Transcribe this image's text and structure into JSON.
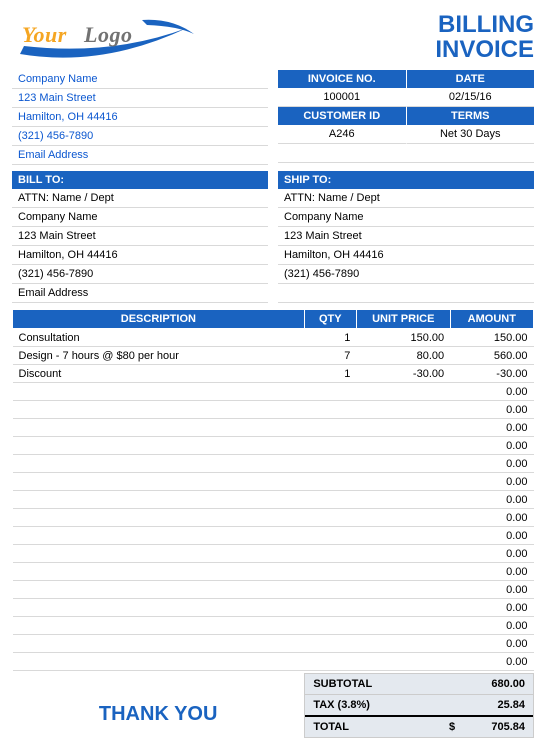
{
  "logo": {
    "text1": "Your",
    "text2": "Logo",
    "color1": "#f5a623",
    "color2": "#727272",
    "swoosh_color": "#1a63c0"
  },
  "title": {
    "line1": "BILLING",
    "line2": "INVOICE",
    "color": "#1a63c0"
  },
  "company": {
    "name": "Company Name",
    "street": "123 Main Street",
    "citystate": "Hamilton, OH  44416",
    "phone": "(321) 456-7890",
    "email": "Email Address"
  },
  "meta": {
    "invoice_label": "INVOICE NO.",
    "date_label": "DATE",
    "invoice_no": "100001",
    "date": "02/15/16",
    "customer_label": "CUSTOMER ID",
    "terms_label": "TERMS",
    "customer_id": "A246",
    "terms": "Net 30 Days"
  },
  "billto": {
    "header": "BILL TO:",
    "attn": "ATTN: Name / Dept",
    "company": "Company Name",
    "street": "123 Main Street",
    "citystate": "Hamilton, OH  44416",
    "phone": "(321) 456-7890",
    "email": "Email Address"
  },
  "shipto": {
    "header": "SHIP TO:",
    "attn": "ATTN: Name / Dept",
    "company": "Company Name",
    "street": "123 Main Street",
    "citystate": "Hamilton, OH  44416",
    "phone": "(321) 456-7890",
    "email": ""
  },
  "table": {
    "headers": {
      "desc": "DESCRIPTION",
      "qty": "QTY",
      "unit": "UNIT PRICE",
      "amt": "AMOUNT"
    },
    "rows": [
      {
        "desc": "Consultation",
        "qty": "1",
        "unit": "150.00",
        "amt": "150.00"
      },
      {
        "desc": "Design - 7 hours @ $80 per hour",
        "qty": "7",
        "unit": "80.00",
        "amt": "560.00"
      },
      {
        "desc": "Discount",
        "qty": "1",
        "unit": "-30.00",
        "amt": "-30.00"
      }
    ],
    "empty_rows": 16,
    "empty_amt": "0.00"
  },
  "totals": {
    "thank": "THANK YOU",
    "subtotal_label": "SUBTOTAL",
    "subtotal": "680.00",
    "tax_label": "TAX (3.8%)",
    "tax": "25.84",
    "total_label": "TOTAL",
    "currency": "$",
    "total": "705.84"
  },
  "colors": {
    "blue": "#1a63c0",
    "link": "#0b57d0",
    "total_bg": "#e4e9ef",
    "border": "#d9d9d9"
  }
}
